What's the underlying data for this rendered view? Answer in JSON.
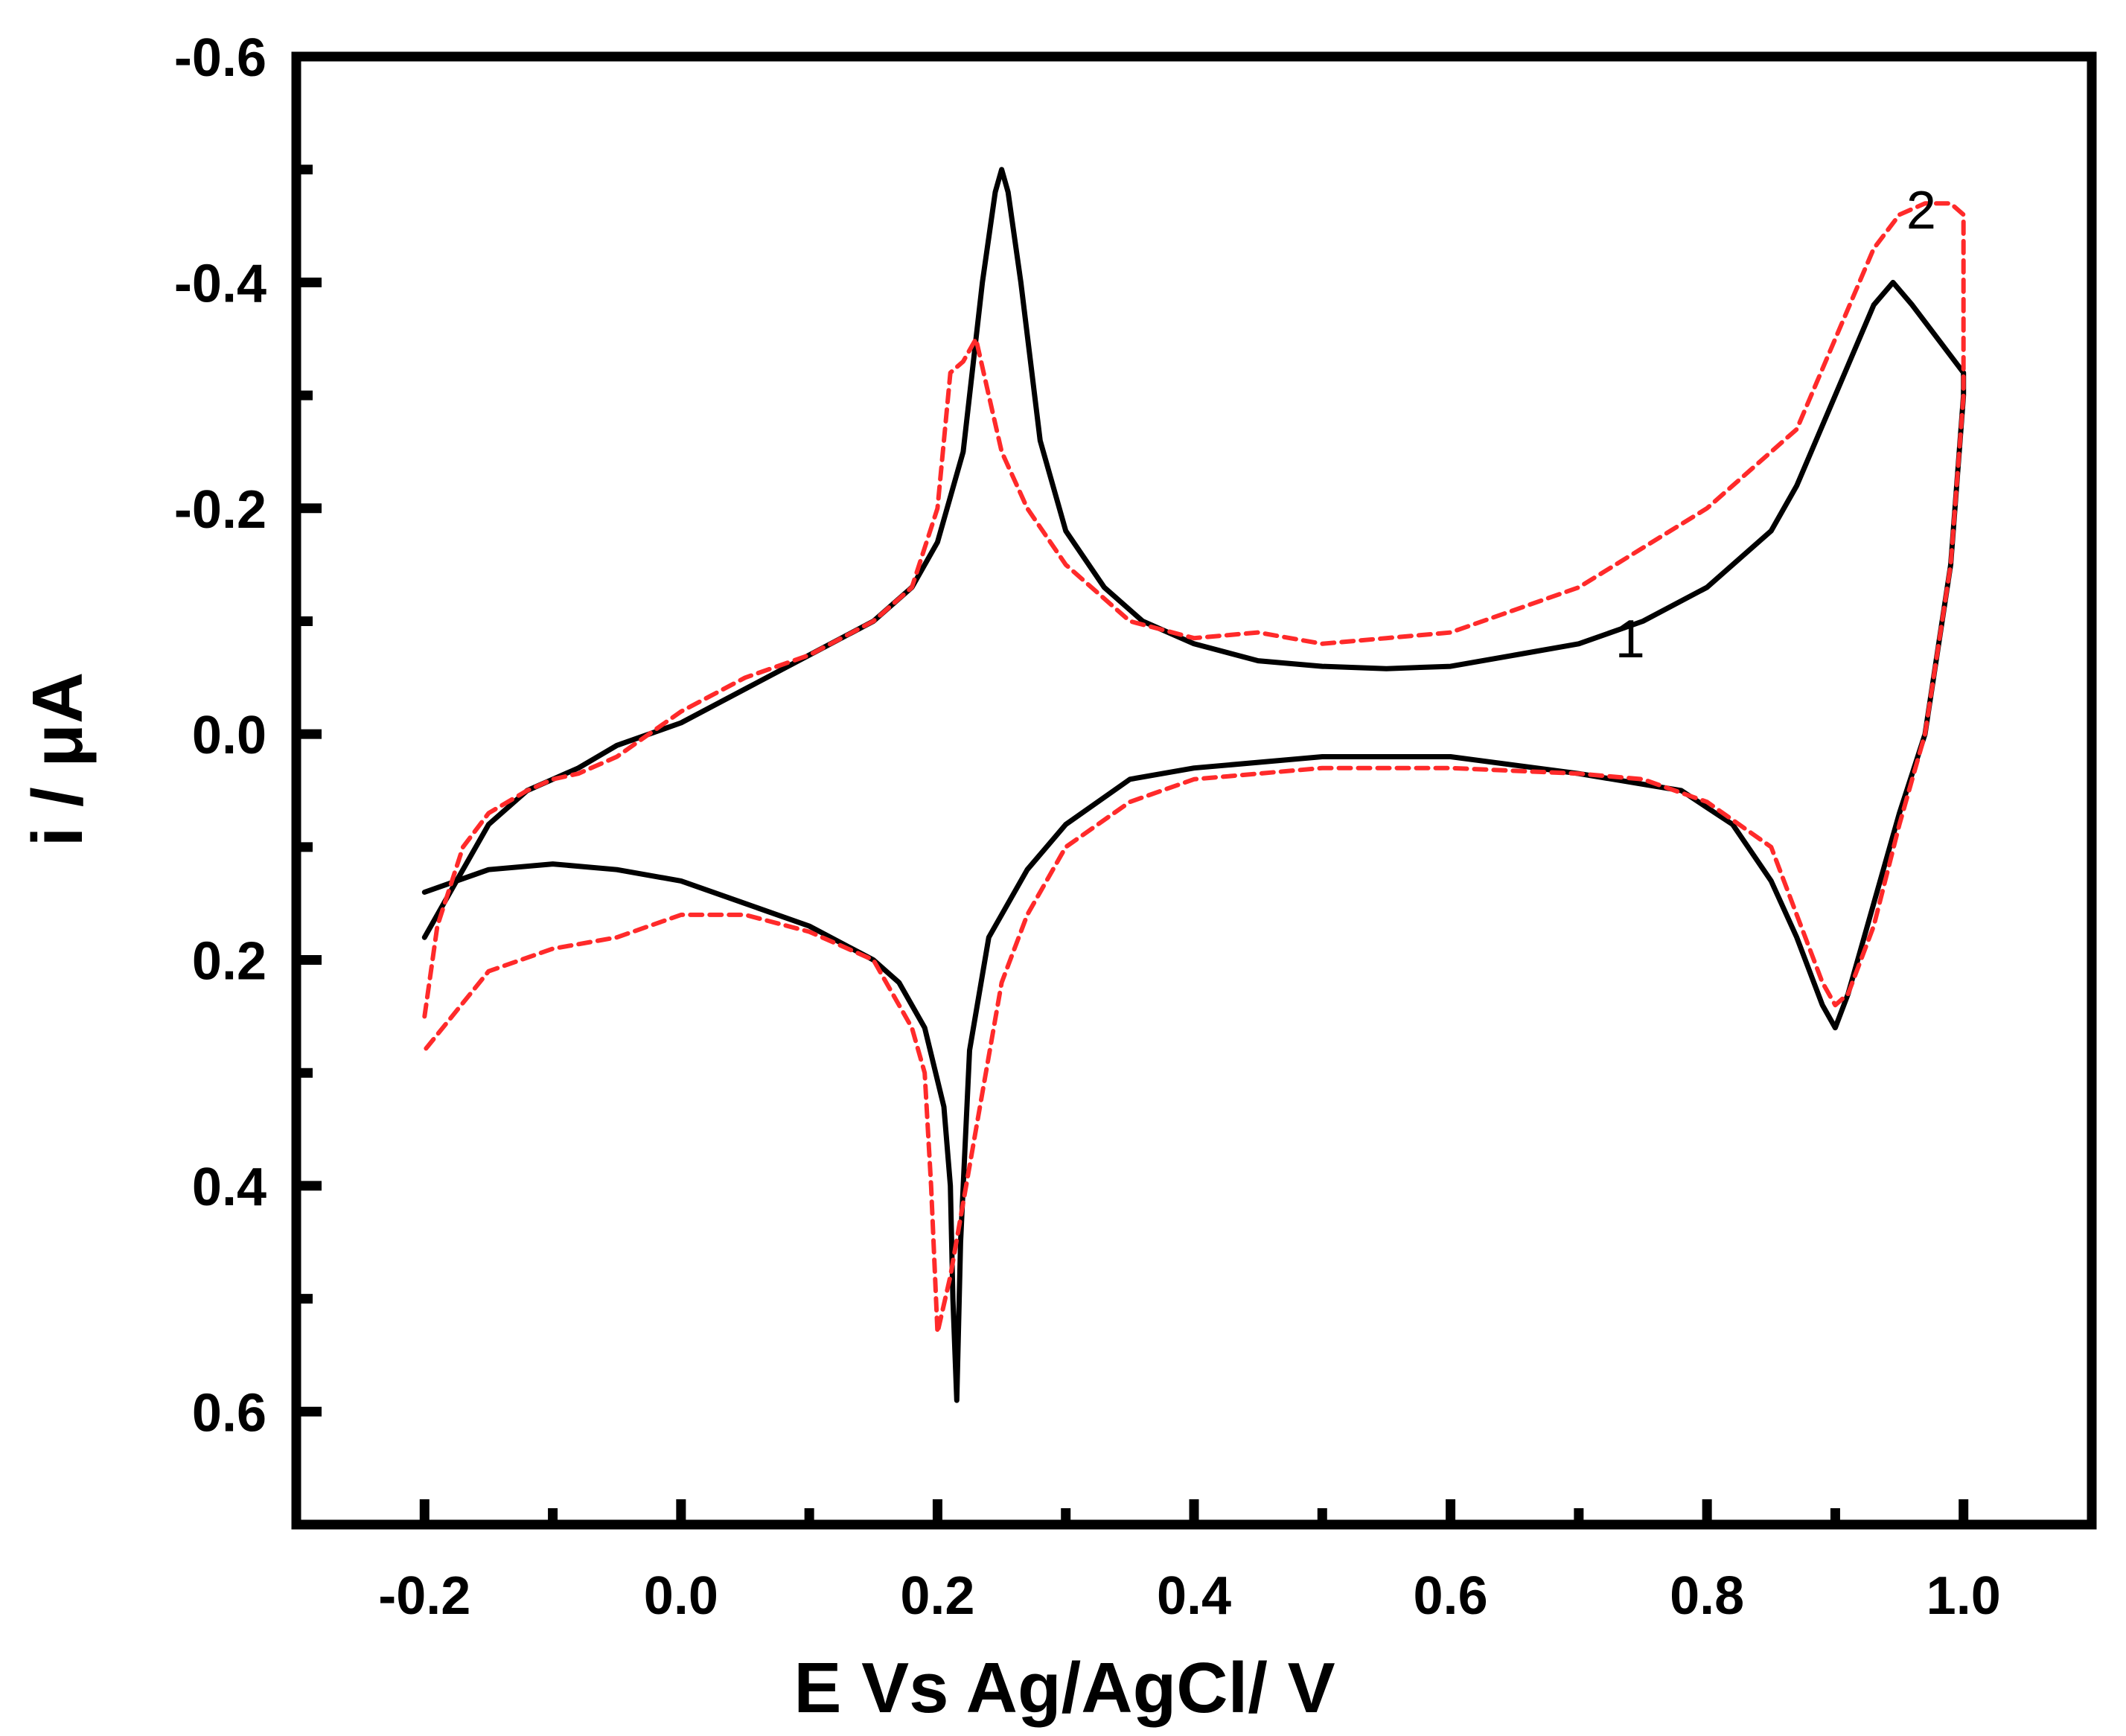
{
  "chart_data": {
    "type": "line",
    "xlabel": "E Vs Ag/AgCl/ V",
    "ylabel": "i / μA",
    "xlim": [
      -0.3,
      1.1
    ],
    "ylim": [
      0.7,
      -0.6
    ],
    "y_axis_inverted": true,
    "xticks": [
      -0.2,
      0.0,
      0.2,
      0.4,
      0.6,
      0.8,
      1.0
    ],
    "xtick_labels": [
      "-0.2",
      "0.0",
      "0.2",
      "0.4",
      "0.6",
      "0.8",
      "1.0"
    ],
    "yticks": [
      -0.6,
      -0.4,
      -0.2,
      0.0,
      0.2,
      0.4,
      0.6
    ],
    "ytick_labels": [
      "-0.6",
      "-0.4",
      "-0.2",
      "0.0",
      "0.2",
      "0.4",
      "0.6"
    ],
    "grid": false,
    "legend": "none",
    "series": [
      {
        "label": "1",
        "color": "#000000",
        "style": "solid",
        "x": [
          -0.2,
          -0.18,
          -0.15,
          -0.12,
          -0.1,
          -0.08,
          -0.05,
          0.0,
          0.05,
          0.1,
          0.15,
          0.18,
          0.2,
          0.22,
          0.235,
          0.245,
          0.25,
          0.255,
          0.265,
          0.28,
          0.3,
          0.33,
          0.36,
          0.4,
          0.45,
          0.5,
          0.55,
          0.6,
          0.65,
          0.7,
          0.75,
          0.8,
          0.85,
          0.87,
          0.9,
          0.93,
          0.945,
          0.96,
          0.98,
          1.0,
          1.0,
          0.99,
          0.97,
          0.95,
          0.93,
          0.91,
          0.9,
          0.89,
          0.87,
          0.85,
          0.82,
          0.78,
          0.7,
          0.6,
          0.5,
          0.4,
          0.35,
          0.3,
          0.27,
          0.24,
          0.225,
          0.218,
          0.215,
          0.212,
          0.21,
          0.205,
          0.19,
          0.17,
          0.15,
          0.1,
          0.05,
          0.0,
          -0.05,
          -0.1,
          -0.15,
          -0.2
        ],
        "y": [
          0.18,
          0.14,
          0.08,
          0.05,
          0.04,
          0.03,
          0.01,
          -0.01,
          -0.04,
          -0.07,
          -0.1,
          -0.13,
          -0.17,
          -0.25,
          -0.4,
          -0.48,
          -0.5,
          -0.48,
          -0.4,
          -0.26,
          -0.18,
          -0.13,
          -0.1,
          -0.08,
          -0.065,
          -0.06,
          -0.058,
          -0.06,
          -0.07,
          -0.08,
          -0.1,
          -0.13,
          -0.18,
          -0.22,
          -0.3,
          -0.38,
          -0.4,
          -0.38,
          -0.35,
          -0.32,
          -0.3,
          -0.15,
          0.0,
          0.07,
          0.15,
          0.23,
          0.26,
          0.24,
          0.18,
          0.13,
          0.08,
          0.05,
          0.035,
          0.02,
          0.02,
          0.03,
          0.04,
          0.08,
          0.12,
          0.18,
          0.28,
          0.45,
          0.59,
          0.5,
          0.4,
          0.33,
          0.26,
          0.22,
          0.2,
          0.17,
          0.15,
          0.13,
          0.12,
          0.115,
          0.12,
          0.14
        ]
      },
      {
        "label": "2",
        "color": "#ff2a2a",
        "style": "dashed",
        "x": [
          -0.2,
          -0.19,
          -0.17,
          -0.15,
          -0.12,
          -0.1,
          -0.08,
          -0.05,
          0.0,
          0.05,
          0.1,
          0.15,
          0.18,
          0.2,
          0.21,
          0.22,
          0.23,
          0.24,
          0.25,
          0.27,
          0.3,
          0.35,
          0.4,
          0.45,
          0.5,
          0.55,
          0.6,
          0.7,
          0.8,
          0.87,
          0.9,
          0.93,
          0.95,
          0.97,
          0.99,
          1.0,
          1.0,
          0.99,
          0.97,
          0.95,
          0.93,
          0.91,
          0.9,
          0.89,
          0.87,
          0.85,
          0.8,
          0.75,
          0.7,
          0.6,
          0.5,
          0.4,
          0.35,
          0.3,
          0.27,
          0.25,
          0.23,
          0.21,
          0.2,
          0.195,
          0.19,
          0.18,
          0.15,
          0.1,
          0.05,
          0.0,
          -0.05,
          -0.1,
          -0.15,
          -0.2
        ],
        "y": [
          0.25,
          0.17,
          0.1,
          0.07,
          0.05,
          0.04,
          0.035,
          0.02,
          -0.02,
          -0.05,
          -0.07,
          -0.1,
          -0.13,
          -0.2,
          -0.32,
          -0.33,
          -0.35,
          -0.3,
          -0.25,
          -0.2,
          -0.15,
          -0.1,
          -0.085,
          -0.09,
          -0.08,
          -0.085,
          -0.09,
          -0.13,
          -0.2,
          -0.27,
          -0.35,
          -0.43,
          -0.46,
          -0.47,
          -0.47,
          -0.46,
          -0.3,
          -0.15,
          0.0,
          0.08,
          0.17,
          0.23,
          0.24,
          0.22,
          0.16,
          0.1,
          0.06,
          0.04,
          0.035,
          0.03,
          0.03,
          0.04,
          0.06,
          0.1,
          0.16,
          0.22,
          0.35,
          0.48,
          0.53,
          0.4,
          0.3,
          0.26,
          0.2,
          0.175,
          0.16,
          0.16,
          0.18,
          0.19,
          0.21,
          0.28
        ]
      }
    ],
    "annotations": [
      {
        "text": "1",
        "x": 0.74,
        "y": -0.085
      },
      {
        "text": "2",
        "x": 0.967,
        "y": -0.465
      }
    ]
  }
}
